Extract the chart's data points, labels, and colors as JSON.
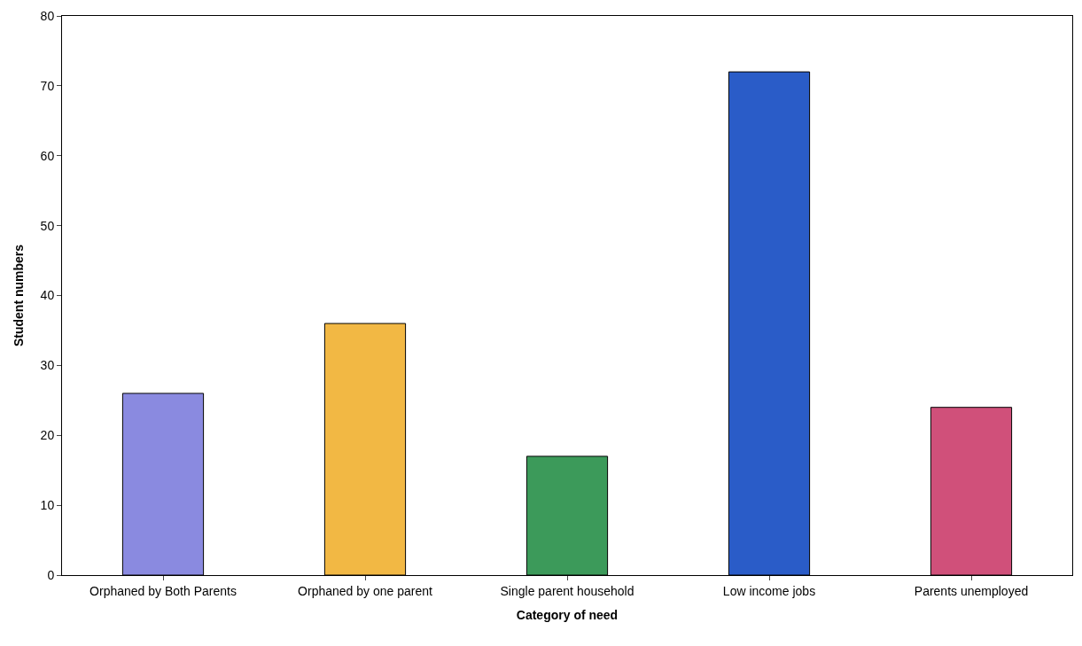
{
  "chart_data": {
    "type": "bar",
    "xlabel": "Category of need",
    "ylabel": "Student numbers",
    "categories": [
      "Orphaned by Both Parents",
      "Orphaned by one parent",
      "Single parent household",
      "Low income jobs",
      "Parents unemployed"
    ],
    "values": [
      26,
      36,
      17,
      72,
      24
    ],
    "colors": [
      "#8a8ae0",
      "#f2b844",
      "#3c9a5a",
      "#2a5cc8",
      "#d0507a"
    ],
    "ylim": [
      0,
      80
    ],
    "yticks": [
      0,
      10,
      20,
      30,
      40,
      50,
      60,
      70,
      80
    ],
    "grid": false
  }
}
